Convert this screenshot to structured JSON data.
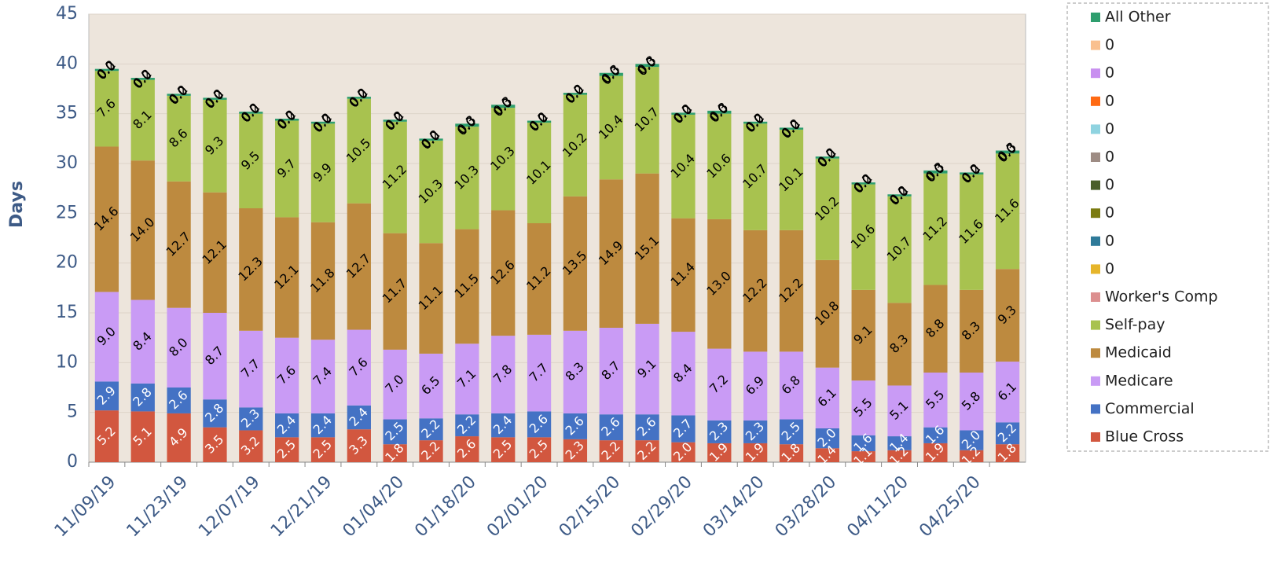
{
  "chart_data": {
    "type": "stacked_bar",
    "y_label": "Days",
    "categories": [
      "11/09/19",
      null,
      "11/23/19",
      null,
      "12/07/19",
      null,
      "12/21/19",
      null,
      "01/04/20",
      null,
      "01/18/20",
      null,
      "02/01/20",
      null,
      "02/15/20",
      null,
      "02/29/20",
      null,
      "03/14/20",
      null,
      "03/28/20",
      null,
      "04/11/20",
      null,
      "04/25/20",
      null
    ],
    "ylim": [
      0,
      45
    ],
    "yticks": [
      0,
      5,
      10,
      15,
      20,
      25,
      30,
      35,
      40,
      45
    ],
    "grid": true,
    "legend": "right",
    "series": [
      {
        "name": "Blue Cross",
        "color": "#d2573f",
        "label_color": "#ffffff",
        "values": [
          5.2,
          5.1,
          4.9,
          3.5,
          3.2,
          2.5,
          2.5,
          3.3,
          1.8,
          2.2,
          2.6,
          2.5,
          2.5,
          2.3,
          2.2,
          2.2,
          2.0,
          1.9,
          1.9,
          1.8,
          1.4,
          1.1,
          1.2,
          1.9,
          1.2,
          1.8
        ],
        "value_labels": [
          "5.2",
          "5.1",
          "4.9",
          "3.5",
          "3.2",
          "2.5",
          "2.5",
          "3.3",
          "1.8",
          "2.2",
          "2.6",
          "2.5",
          "2.5",
          "2.3",
          "2.2",
          "2.2",
          "2.0",
          "1.9",
          "1.9",
          "1.8",
          "1.4",
          "1.1",
          "1.2",
          "1.9",
          "1.2",
          "1.8"
        ]
      },
      {
        "name": "Commercial",
        "color": "#4472c4",
        "label_color": "#ffffff",
        "values": [
          2.9,
          2.8,
          2.6,
          2.8,
          2.3,
          2.4,
          2.4,
          2.4,
          2.5,
          2.2,
          2.2,
          2.4,
          2.6,
          2.6,
          2.6,
          2.6,
          2.7,
          2.3,
          2.3,
          2.5,
          2.0,
          1.6,
          1.4,
          1.6,
          2.0,
          2.2
        ],
        "value_labels": [
          "2.9",
          "2.8",
          "2.6",
          "2.8",
          "2.3",
          "2.4",
          "2.4",
          "2.4",
          "2.5",
          "2.2",
          "2.2",
          "2.4",
          "2.6",
          "2.6",
          "2.6",
          "2.6",
          "2.7",
          "2.3",
          "2.3",
          "2.5",
          "2.0",
          "1.6",
          "1.4",
          "1.6",
          "2.0",
          "2.2"
        ]
      },
      {
        "name": "Medicare",
        "color": "#c99bf5",
        "label_color": "#000000",
        "values": [
          9.0,
          8.4,
          8.0,
          8.7,
          7.7,
          7.6,
          7.4,
          7.6,
          7.0,
          6.5,
          7.1,
          7.8,
          7.7,
          8.3,
          8.7,
          9.1,
          8.4,
          7.2,
          6.9,
          6.8,
          6.1,
          5.5,
          5.1,
          5.5,
          5.8,
          6.1
        ],
        "value_labels": [
          "9.0",
          "8.4",
          "8.0",
          "8.7",
          "7.7",
          "7.6",
          "7.4",
          "7.6",
          "7.0",
          "6.5",
          "7.1",
          "7.8",
          "7.7",
          "8.3",
          "8.7",
          "9.1",
          "8.4",
          "7.2",
          "6.9",
          "6.8",
          "6.1",
          "5.5",
          "5.1",
          "5.5",
          "5.8",
          "6.1"
        ]
      },
      {
        "name": "Medicaid",
        "color": "#bd8a3f",
        "label_color": "#000000",
        "values": [
          14.6,
          14.0,
          12.7,
          12.1,
          12.3,
          12.1,
          11.8,
          12.7,
          11.7,
          11.1,
          11.5,
          12.6,
          11.2,
          13.5,
          14.9,
          15.1,
          11.4,
          13.0,
          12.2,
          12.2,
          10.8,
          9.1,
          8.3,
          8.8,
          8.3,
          9.3
        ],
        "value_labels": [
          "14.6",
          "14.0",
          "12.7",
          "12.1",
          "12.3",
          "12.1",
          "11.8",
          "12.7",
          "11.7",
          "11.1",
          "11.5",
          "12.6",
          "11.2",
          "13.5",
          "14.9",
          "15.1",
          "11.4",
          "13.0",
          "12.2",
          "12.2",
          "10.8",
          "9.1",
          "8.3",
          "8.8",
          "8.3",
          "9.3"
        ]
      },
      {
        "name": "Self-pay",
        "color": "#a8c24f",
        "label_color": "#000000",
        "values": [
          7.6,
          8.1,
          8.6,
          9.3,
          9.5,
          9.7,
          9.9,
          10.5,
          11.2,
          10.3,
          10.3,
          10.3,
          10.1,
          10.2,
          10.4,
          10.7,
          10.4,
          10.6,
          10.7,
          10.1,
          10.2,
          10.6,
          10.7,
          11.2,
          11.6,
          11.6
        ],
        "value_labels": [
          "7.6",
          "8.1",
          "8.6",
          "9.3",
          "9.5",
          "9.7",
          "9.9",
          "10.5",
          "11.2",
          "10.3",
          "10.3",
          "10.3",
          "10.1",
          "10.2",
          "10.4",
          "10.7",
          "10.4",
          "10.6",
          "10.7",
          "10.1",
          "10.2",
          "10.6",
          "10.7",
          "11.2",
          "11.6",
          "11.6"
        ]
      },
      {
        "name": "Worker's Comp",
        "color": "#dc8f8f",
        "label_color": "#000000",
        "values": [
          0,
          0,
          0,
          0,
          0,
          0,
          0,
          0,
          0,
          0,
          0,
          0,
          0,
          0,
          0,
          0,
          0,
          0,
          0,
          0,
          0,
          0,
          0,
          0,
          0,
          0
        ],
        "value_labels": [
          "0.0",
          "0.0",
          "0.0",
          "0.0",
          "0.0",
          "0.0",
          "0.0",
          "0.0",
          "0.0",
          "0.0",
          "0.0",
          "0.0",
          "0.0",
          "0.0",
          "0.0",
          "0.0",
          "0.0",
          "0.0",
          "0.0",
          "0.0",
          "0.0",
          "0.0",
          "0.0",
          "0.0",
          "0.0",
          "0.0"
        ]
      },
      {
        "name": "0",
        "color": "#e6b52a",
        "label_color": "#000000",
        "values": [
          0,
          0,
          0,
          0,
          0,
          0,
          0,
          0,
          0,
          0,
          0,
          0,
          0,
          0,
          0,
          0,
          0,
          0,
          0,
          0,
          0,
          0,
          0,
          0,
          0,
          0
        ],
        "value_labels": [
          "0.0",
          "0.0",
          "0.0",
          "0.0",
          "0.0",
          "0.0",
          "0.0",
          "0.0",
          "0.0",
          "0.0",
          "0.0",
          "0.0",
          "0.0",
          "0.0",
          "0.0",
          "0.0",
          "0.0",
          "0.0",
          "0.0",
          "0.0",
          "0.0",
          "0.0",
          "0.0",
          "0.0",
          "0.0",
          "0.0"
        ]
      },
      {
        "name": "0",
        "color": "#2e7a99",
        "label_color": "#000000",
        "values": [
          0,
          0,
          0,
          0,
          0,
          0,
          0,
          0,
          0,
          0,
          0,
          0,
          0,
          0,
          0,
          0,
          0,
          0,
          0,
          0,
          0,
          0,
          0,
          0,
          0,
          0
        ],
        "value_labels": [
          "0.0",
          "0.0",
          "0.0",
          "0.0",
          "0.0",
          "0.0",
          "0.0",
          "0.0",
          "0.0",
          "0.0",
          "0.0",
          "0.0",
          "0.0",
          "0.0",
          "0.0",
          "0.0",
          "0.0",
          "0.0",
          "0.0",
          "0.0",
          "0.0",
          "0.0",
          "0.0",
          "0.0",
          "0.0",
          "0.0"
        ]
      },
      {
        "name": "0",
        "color": "#7b7b10",
        "label_color": "#000000",
        "values": [
          0,
          0,
          0,
          0,
          0,
          0,
          0,
          0,
          0,
          0,
          0,
          0,
          0,
          0,
          0,
          0,
          0,
          0,
          0,
          0,
          0,
          0,
          0,
          0,
          0,
          0
        ],
        "value_labels": [
          "0.0",
          "0.0",
          "0.0",
          "0.0",
          "0.0",
          "0.0",
          "0.0",
          "0.0",
          "0.0",
          "0.0",
          "0.0",
          "0.0",
          "0.0",
          "0.0",
          "0.0",
          "0.0",
          "0.0",
          "0.0",
          "0.0",
          "0.0",
          "0.0",
          "0.0",
          "0.0",
          "0.0",
          "0.0",
          "0.0"
        ]
      },
      {
        "name": "0",
        "color": "#4a5e2a",
        "label_color": "#000000",
        "values": [
          0,
          0,
          0,
          0,
          0,
          0,
          0,
          0,
          0,
          0,
          0,
          0,
          0,
          0,
          0,
          0,
          0,
          0,
          0,
          0,
          0,
          0,
          0,
          0,
          0,
          0
        ],
        "value_labels": [
          "0.0",
          "0.0",
          "0.0",
          "0.0",
          "0.0",
          "0.0",
          "0.0",
          "0.0",
          "0.0",
          "0.0",
          "0.0",
          "0.0",
          "0.0",
          "0.0",
          "0.0",
          "0.0",
          "0.0",
          "0.0",
          "0.0",
          "0.0",
          "0.0",
          "0.0",
          "0.0",
          "0.0",
          "0.0",
          "0.0"
        ]
      },
      {
        "name": "0",
        "color": "#9e8c84",
        "label_color": "#000000",
        "values": [
          0,
          0,
          0,
          0,
          0,
          0,
          0,
          0,
          0,
          0,
          0,
          0,
          0,
          0,
          0,
          0,
          0,
          0,
          0,
          0,
          0,
          0,
          0,
          0,
          0,
          0
        ],
        "value_labels": [
          "0.0",
          "0.0",
          "0.0",
          "0.0",
          "0.0",
          "0.0",
          "0.0",
          "0.0",
          "0.0",
          "0.0",
          "0.0",
          "0.0",
          "0.0",
          "0.0",
          "0.0",
          "0.0",
          "0.0",
          "0.0",
          "0.0",
          "0.0",
          "0.0",
          "0.0",
          "0.0",
          "0.0",
          "0.0",
          "0.0"
        ]
      },
      {
        "name": "0",
        "color": "#8fd3e0",
        "label_color": "#000000",
        "values": [
          0,
          0,
          0,
          0,
          0,
          0,
          0,
          0,
          0,
          0,
          0,
          0,
          0,
          0,
          0,
          0,
          0,
          0,
          0,
          0,
          0,
          0,
          0,
          0,
          0,
          0
        ],
        "value_labels": [
          "0.0",
          "0.0",
          "0.0",
          "0.0",
          "0.0",
          "0.0",
          "0.0",
          "0.0",
          "0.0",
          "0.0",
          "0.0",
          "0.0",
          "0.0",
          "0.0",
          "0.0",
          "0.0",
          "0.0",
          "0.0",
          "0.0",
          "0.0",
          "0.0",
          "0.0",
          "0.0",
          "0.0",
          "0.0",
          "0.0"
        ]
      },
      {
        "name": "0",
        "color": "#ff6a13",
        "label_color": "#000000",
        "values": [
          0,
          0,
          0,
          0,
          0,
          0,
          0,
          0,
          0,
          0,
          0,
          0,
          0,
          0,
          0,
          0,
          0,
          0,
          0,
          0,
          0,
          0,
          0,
          0,
          0,
          0
        ],
        "value_labels": [
          "0.0",
          "0.0",
          "0.0",
          "0.0",
          "0.0",
          "0.0",
          "0.0",
          "0.0",
          "0.0",
          "0.0",
          "0.0",
          "0.0",
          "0.0",
          "0.0",
          "0.0",
          "0.0",
          "0.0",
          "0.0",
          "0.0",
          "0.0",
          "0.0",
          "0.0",
          "0.0",
          "0.0",
          "0.0",
          "0.0"
        ]
      },
      {
        "name": "0",
        "color": "#c88ff0",
        "label_color": "#000000",
        "values": [
          0,
          0,
          0,
          0,
          0,
          0,
          0,
          0,
          0,
          0,
          0,
          0,
          0,
          0,
          0,
          0,
          0,
          0,
          0,
          0,
          0,
          0,
          0,
          0,
          0,
          0
        ],
        "value_labels": [
          "0.0",
          "0.0",
          "0.0",
          "0.0",
          "0.0",
          "0.0",
          "0.0",
          "0.0",
          "0.0",
          "0.0",
          "0.0",
          "0.0",
          "0.0",
          "0.0",
          "0.0",
          "0.0",
          "0.0",
          "0.0",
          "0.0",
          "0.0",
          "0.0",
          "0.0",
          "0.0",
          "0.0",
          "0.0",
          "0.0"
        ]
      },
      {
        "name": "0",
        "color": "#f9c08f",
        "label_color": "#000000",
        "values": [
          0,
          0,
          0,
          0,
          0,
          0,
          0,
          0,
          0,
          0,
          0,
          0,
          0,
          0,
          0,
          0,
          0,
          0,
          0,
          0,
          0,
          0,
          0,
          0,
          0,
          0
        ],
        "value_labels": [
          "0.0",
          "0.0",
          "0.0",
          "0.0",
          "0.0",
          "0.0",
          "0.0",
          "0.0",
          "0.0",
          "0.0",
          "0.0",
          "0.0",
          "0.0",
          "0.0",
          "0.0",
          "0.0",
          "0.0",
          "0.0",
          "0.0",
          "0.0",
          "0.0",
          "0.0",
          "0.0",
          "0.0",
          "0.0",
          "0.0"
        ]
      },
      {
        "name": "All Other",
        "color": "#2e9e6e",
        "label_color": "#000000",
        "values": [
          0.2,
          0.2,
          0.2,
          0.2,
          0.2,
          0.2,
          0.2,
          0.2,
          0.2,
          0.2,
          0.3,
          0.3,
          0.2,
          0.2,
          0.3,
          0.3,
          0.2,
          0.3,
          0.2,
          0.2,
          0.2,
          0.2,
          0.2,
          0.3,
          0.2,
          0.3
        ],
        "value_labels": [
          "0.2",
          "0.2",
          "0.2",
          "0.2",
          "0.2",
          "0.2",
          "0.2",
          "0.2",
          "0.2",
          "0.2",
          "0.3",
          "0.3",
          "0.2",
          "0.2",
          "0.3",
          "0.3",
          "0.2",
          "0.3",
          "0.2",
          "0.2",
          "0.2",
          "0.2",
          "0.2",
          "0.3",
          "0.2",
          "0.3"
        ]
      }
    ]
  }
}
